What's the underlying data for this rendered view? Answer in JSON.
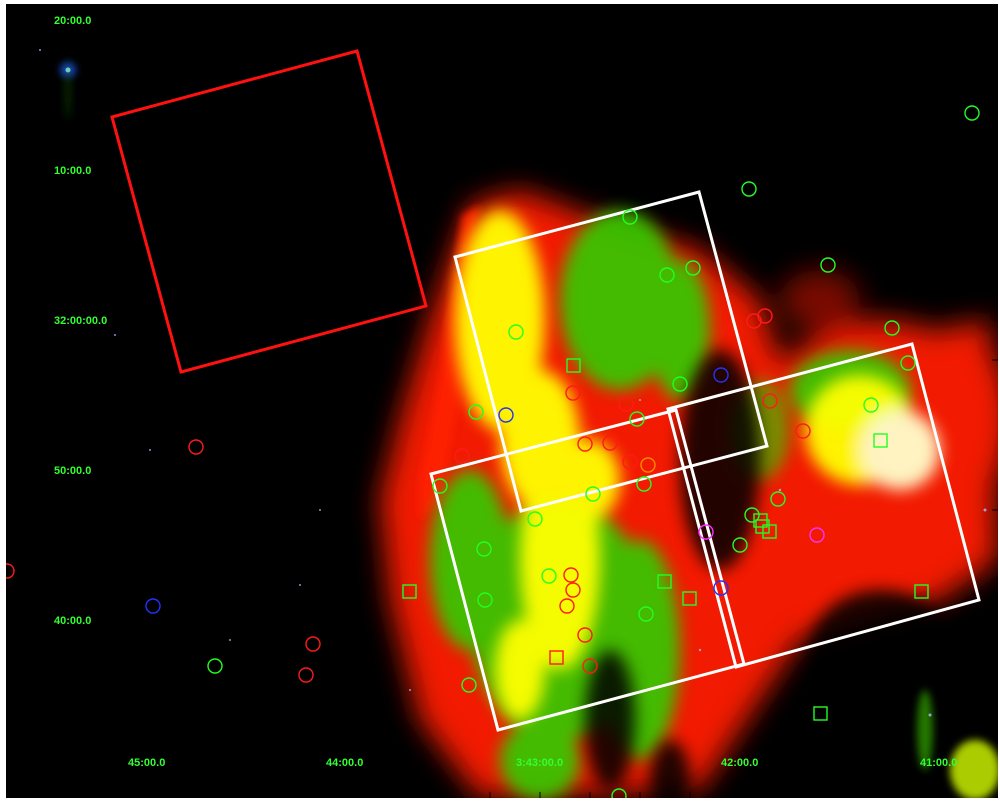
{
  "image": {
    "description_kind": "false-color astronomical mosaic with coordinate grid",
    "colors": {
      "background": "#000000",
      "label": "#33ff33",
      "red_channel": "#ff1a00",
      "green_channel": "#33cc00",
      "yellow_blend": "#ffff00",
      "field_white": "#ffffff",
      "field_red": "#ff1111"
    }
  },
  "dec_labels": [
    "20:00.0",
    "10:00.0",
    "32:00:00.0",
    "50:00.0",
    "40:00.0"
  ],
  "ra_labels": [
    "45:00.0",
    "44:00.0",
    "3:43:00.0",
    "42:00.0",
    "41:00.0"
  ],
  "fields": [
    {
      "name": "red-field-box",
      "color": "red"
    },
    {
      "name": "white-field-box-1",
      "color": "white"
    },
    {
      "name": "white-field-box-2",
      "color": "white"
    },
    {
      "name": "white-field-box-3",
      "color": "white"
    }
  ]
}
